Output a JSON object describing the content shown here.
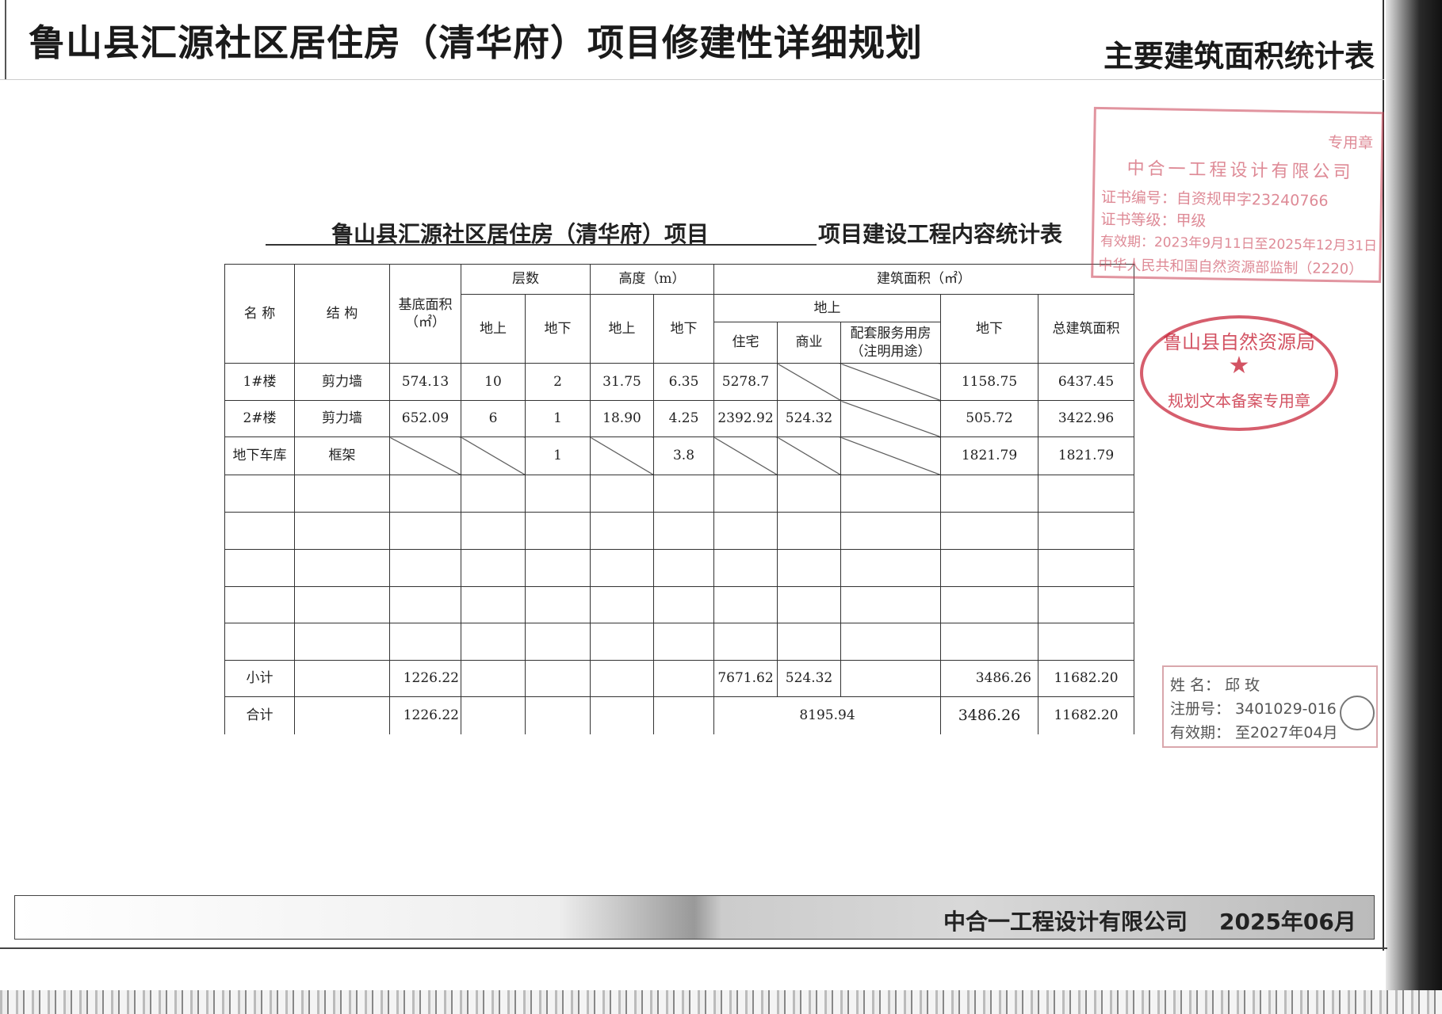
{
  "header": {
    "main_title": "鲁山县汇源社区居住房（清华府）项目修建性详细规划",
    "right_title": "主要建筑面积统计表"
  },
  "table_title": {
    "left": "鲁山县汇源社区居住房（清华府）项目",
    "right": "项目建设工程内容统计表"
  },
  "table": {
    "headers": {
      "name": "名  称",
      "structure": "结 构",
      "base_area": "基底面积（㎡）",
      "floors": "层数",
      "height": "高度（m）",
      "gfa": "建筑面积（㎡）",
      "above": "地上",
      "below": "地下",
      "residential": "住宅",
      "commercial": "商业",
      "service": "配套服务用房（注明用途）",
      "total": "总建筑面积"
    },
    "rows": [
      {
        "name": "1#楼",
        "structure": "剪力墙",
        "base_area": "574.13",
        "floors_above": "10",
        "floors_below": "2",
        "height_above": "31.75",
        "height_below": "6.35",
        "residential": "5278.7",
        "commercial": "",
        "service": "",
        "gfa_below": "1158.75",
        "total": "6437.45"
      },
      {
        "name": "2#楼",
        "structure": "剪力墙",
        "base_area": "652.09",
        "floors_above": "6",
        "floors_below": "1",
        "height_above": "18.90",
        "height_below": "4.25",
        "residential": "2392.92",
        "commercial": "524.32",
        "service": "",
        "gfa_below": "505.72",
        "total": "3422.96"
      },
      {
        "name": "地下车库",
        "structure": "框架",
        "base_area": "",
        "floors_above": "",
        "floors_below": "1",
        "height_above": "",
        "height_below": "3.8",
        "residential": "",
        "commercial": "",
        "service": "",
        "gfa_below": "1821.79",
        "total": "1821.79"
      }
    ],
    "subtotal": {
      "label": "小计",
      "base_area": "1226.22",
      "residential": "7671.62",
      "commercial": "524.32",
      "gfa_below": "3486.26",
      "total": "11682.20"
    },
    "grand_total": {
      "label": "合计",
      "base_area": "1226.22",
      "above_total": "8195.94",
      "gfa_below": "3486.26",
      "total": "11682.20"
    }
  },
  "stamps": {
    "qualification": {
      "top": "专用章",
      "company": "中合一工程设计有限公司",
      "cert_no": "证书编号：自资规甲字23240766",
      "grade": "证书等级：甲级",
      "validity": "有效期：2023年9月11日至2025年12月31日",
      "issuer": "中华人民共和国自然资源部监制（2220）"
    },
    "official": {
      "arc": "鲁山县自然资源局",
      "bottom": "规划文本备案专用章",
      "color": "#c8283c"
    },
    "registered": {
      "name": "姓  名：  邱 玫",
      "reg_no": "注册号： 3401029-016",
      "validity": "有效期： 至2027年04月"
    }
  },
  "footer": {
    "company": "中合一工程设计有限公司",
    "date": "2025年06月"
  }
}
